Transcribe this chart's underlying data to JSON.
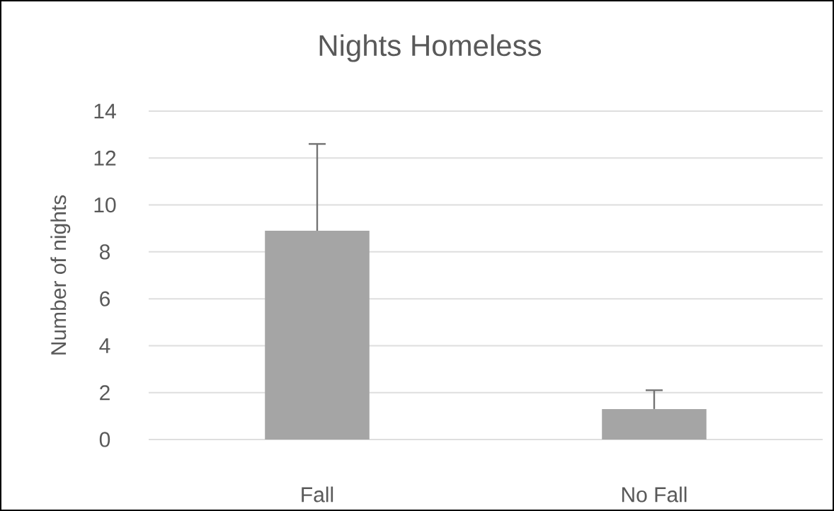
{
  "chart_data": {
    "type": "bar",
    "title": "Nights Homeless",
    "ylabel": "Number of nights",
    "categories": [
      "Fall",
      "No Fall"
    ],
    "values": [
      8.9,
      1.3
    ],
    "errors": [
      [
        8.9,
        12.6
      ],
      [
        1.3,
        2.1
      ]
    ],
    "color": "#a5a5a5",
    "ylim": [
      0,
      14
    ],
    "yticks": [
      0,
      2,
      4,
      6,
      8,
      10,
      12,
      14
    ],
    "grid": "y"
  }
}
